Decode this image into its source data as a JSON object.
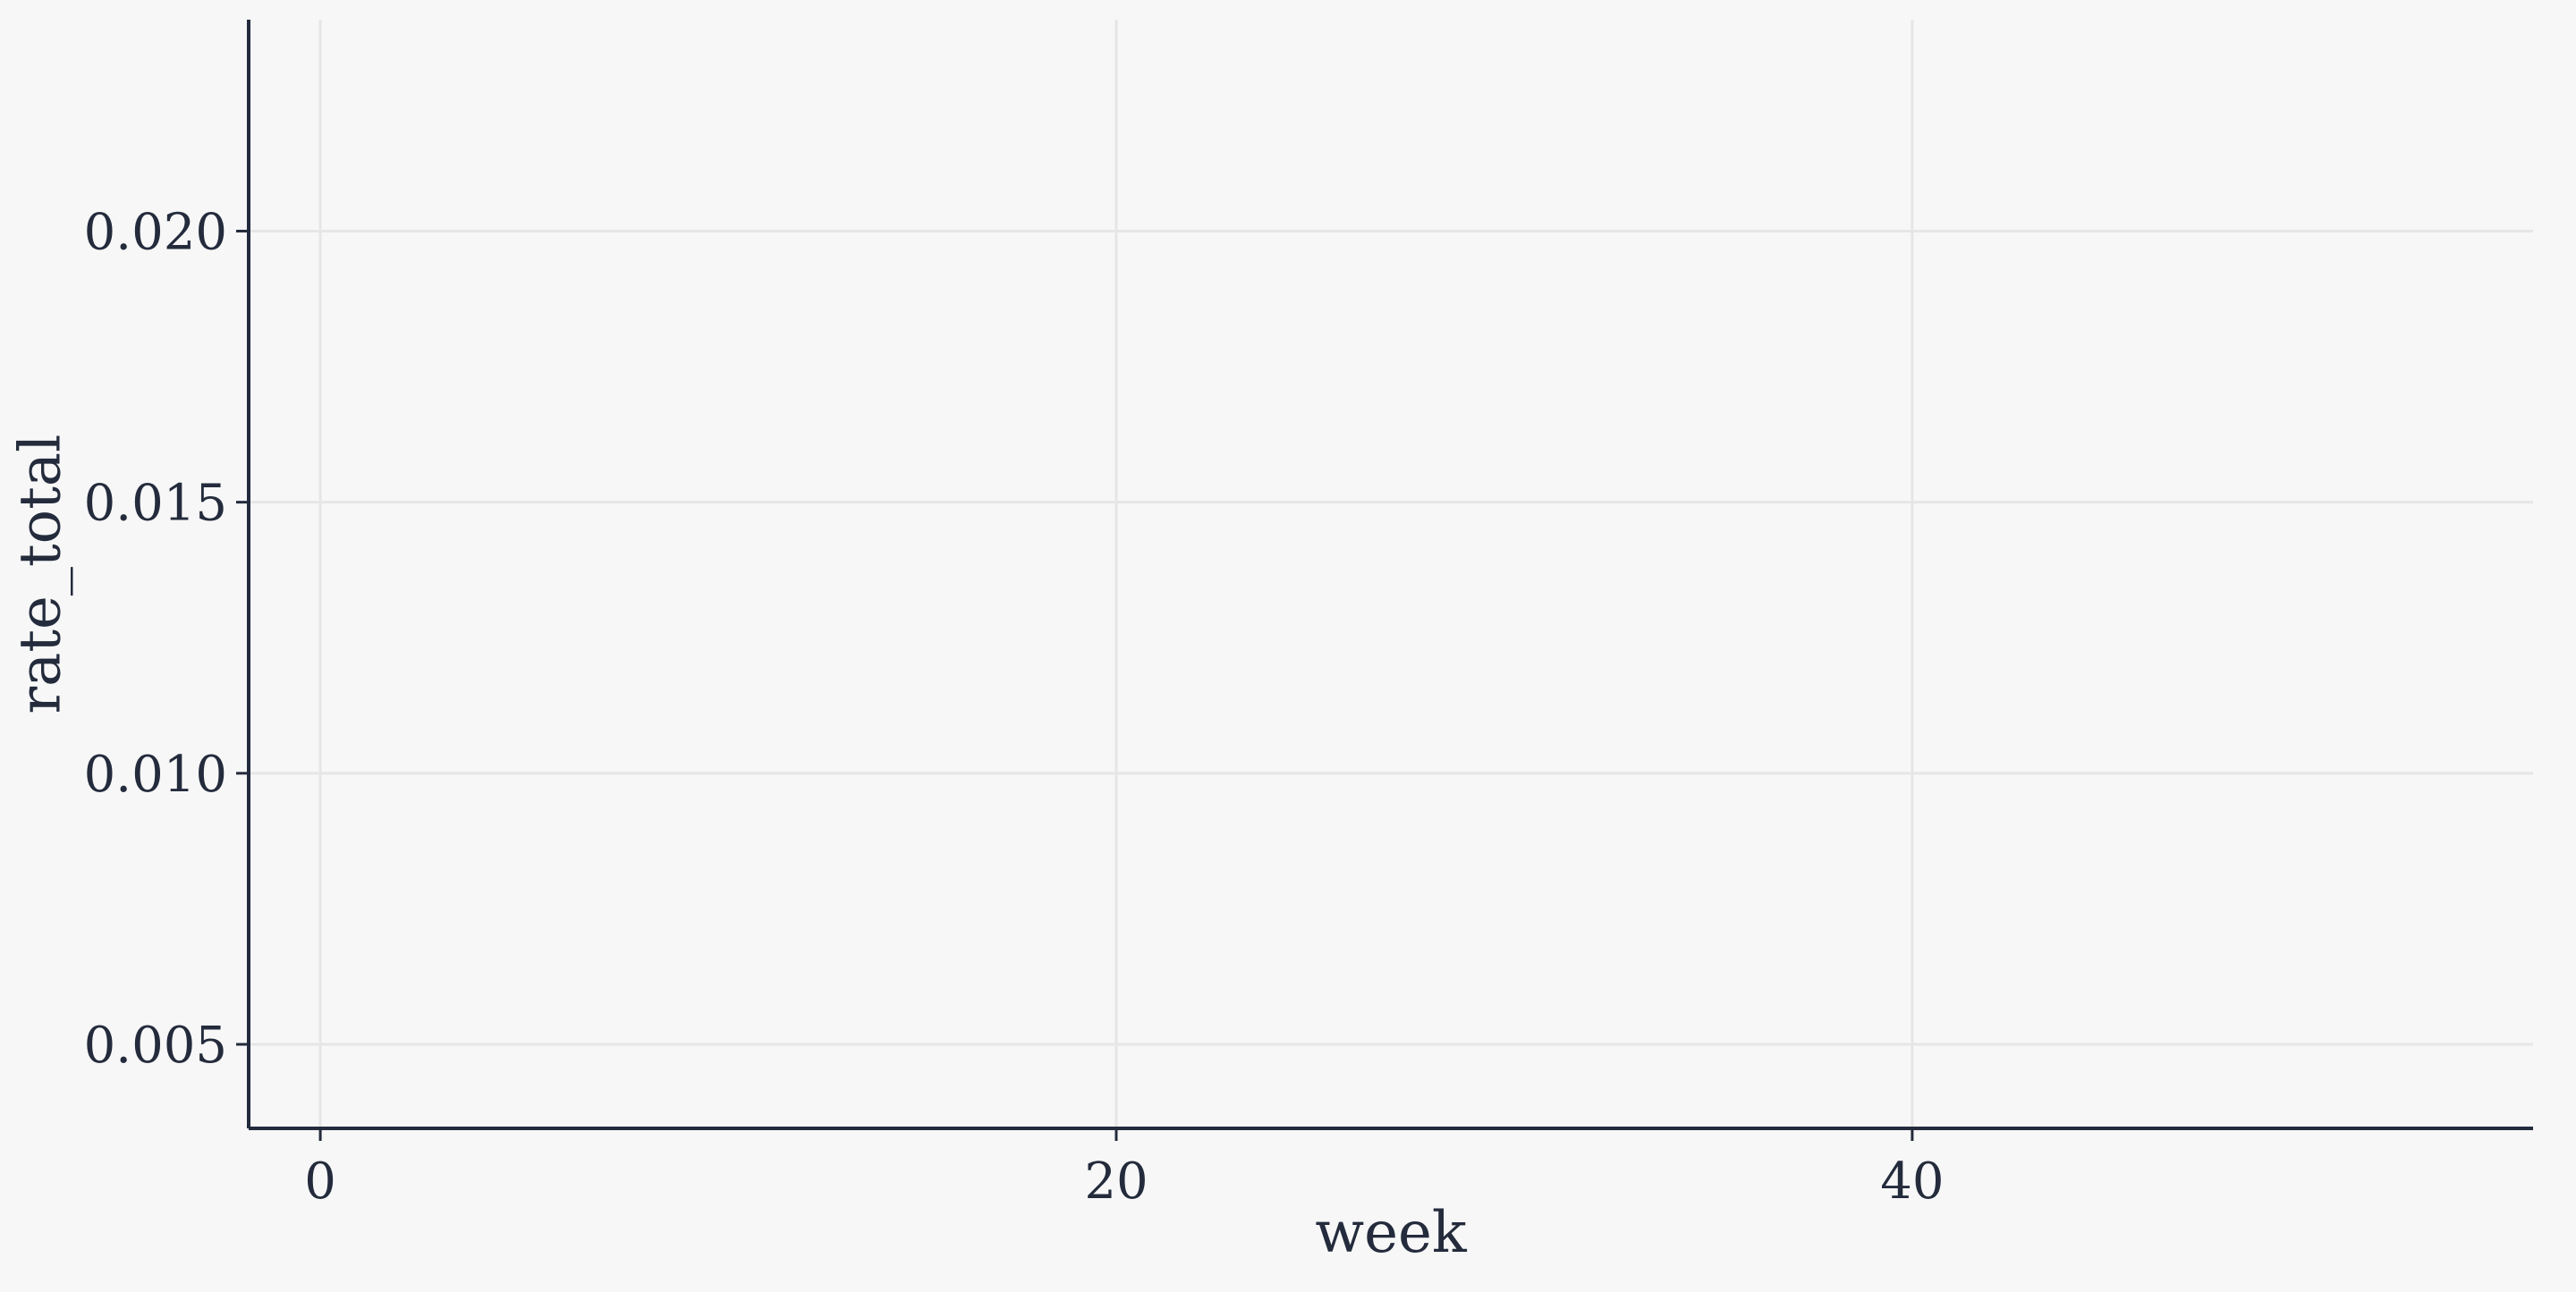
{
  "chart_data": {
    "type": "line",
    "title": "",
    "xlabel": "week",
    "ylabel": "rate_total",
    "xlim": [
      -1.8,
      55.6
    ],
    "ylim": [
      0.00345,
      0.0239
    ],
    "x_ticks": [
      0,
      20,
      40
    ],
    "x_tick_labels": [
      "0",
      "20",
      "40"
    ],
    "y_ticks": [
      0.005,
      0.01,
      0.015,
      0.02
    ],
    "y_tick_labels": [
      "0.005",
      "0.010",
      "0.015",
      "0.020"
    ],
    "grid": true,
    "series": []
  },
  "colors": {
    "background": "#f7f7f7",
    "grid": "#e6e6e6",
    "axis": "#232b3c",
    "text": "#232b3c"
  }
}
